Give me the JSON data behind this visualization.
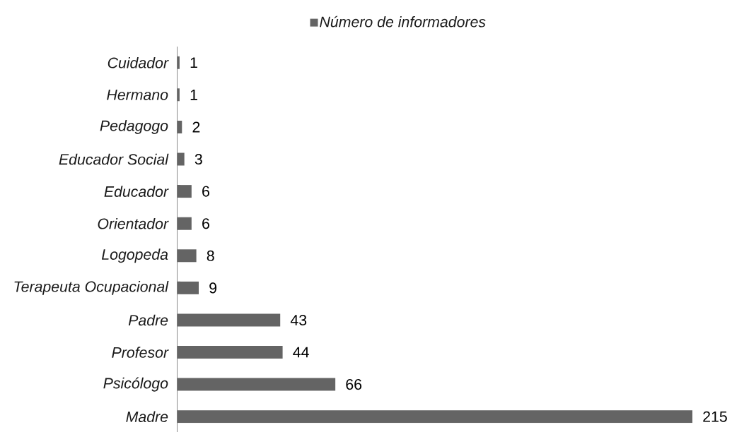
{
  "chart_data": {
    "type": "bar",
    "orientation": "horizontal",
    "categories": [
      "Cuidador",
      "Hermano",
      "Pedagogo",
      "Educador Social",
      "Educador",
      "Orientador",
      "Logopeda",
      "Terapeuta Ocupacional",
      "Padre",
      "Profesor",
      "Psicólogo",
      "Madre"
    ],
    "series": [
      {
        "name": "Número de informadores",
        "color": "#646464",
        "values": [
          1,
          1,
          2,
          3,
          6,
          6,
          8,
          9,
          43,
          44,
          66,
          215
        ]
      }
    ],
    "data_labels": true,
    "legend": "top"
  }
}
